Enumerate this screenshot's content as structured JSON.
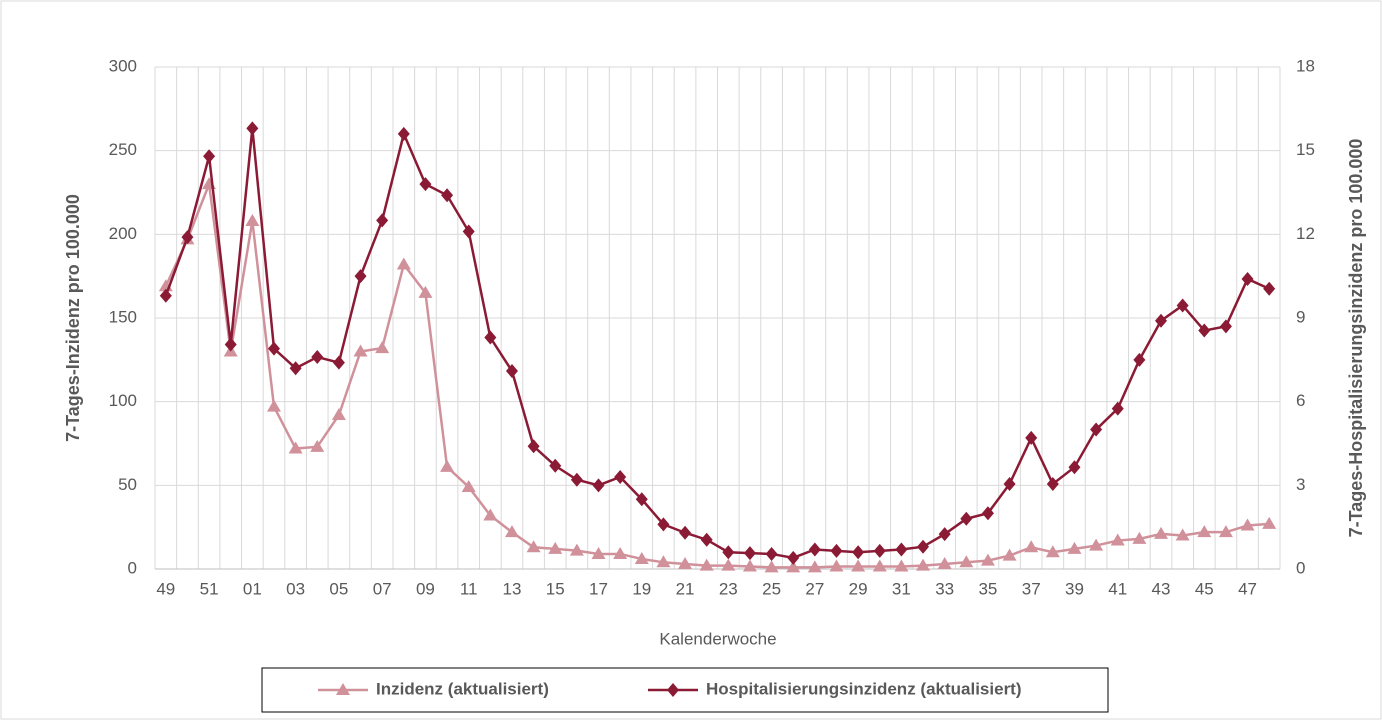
{
  "chart_data": {
    "type": "line",
    "x_label": "Kalenderwoche",
    "y_label": "7-Tages-Inzidenz pro 100.000",
    "y2_label": "7-Tages-Hospitalisierungsinzidenz pro 100.000",
    "categories": [
      "49",
      null,
      "51",
      null,
      "01",
      null,
      "03",
      null,
      "05",
      null,
      "07",
      null,
      "09",
      null,
      "11",
      null,
      "13",
      null,
      "15",
      null,
      "17",
      null,
      "19",
      null,
      "21",
      null,
      "23",
      null,
      "25",
      null,
      "27",
      null,
      "29",
      null,
      "31",
      null,
      "33",
      null,
      "35",
      null,
      "37",
      null,
      "39",
      null,
      "41",
      null,
      "43",
      null,
      "45",
      null,
      "47",
      null
    ],
    "ylim": [
      0,
      300
    ],
    "yticks": [
      0,
      50,
      100,
      150,
      200,
      250,
      300
    ],
    "y2lim": [
      0,
      18
    ],
    "y2ticks": [
      0,
      3,
      6,
      9,
      12,
      15,
      18
    ],
    "grid": true,
    "legend": "bottom",
    "series": [
      {
        "name": "Inzidenz (aktualisiert)",
        "color": "#d0919b",
        "marker": "triangle",
        "values": [
          169,
          197,
          230,
          130,
          208,
          97,
          72,
          73,
          92,
          130,
          132,
          182,
          165,
          61,
          49,
          32,
          22,
          13,
          12,
          11,
          9,
          9,
          6,
          4,
          3,
          2,
          2,
          1.5,
          1,
          1,
          1,
          1.5,
          1.5,
          1.5,
          1.5,
          2,
          3,
          4,
          5,
          8,
          13,
          10,
          12,
          14,
          17,
          18,
          21,
          20,
          22,
          22,
          26,
          27
        ]
      },
      {
        "name": "Hospitalisierungsinzidenz (aktualisiert)",
        "color": "#8b1a35",
        "marker": "diamond",
        "axis": "y2",
        "values": [
          9.8,
          11.9,
          14.8,
          8.05,
          15.8,
          7.9,
          7.2,
          7.6,
          7.4,
          10.5,
          12.5,
          15.6,
          13.8,
          13.4,
          12.1,
          8.3,
          7.1,
          4.4,
          3.7,
          3.2,
          3.0,
          3.3,
          2.5,
          1.6,
          1.3,
          1.05,
          0.6,
          0.57,
          0.54,
          0.4,
          0.7,
          0.65,
          0.6,
          0.65,
          0.7,
          0.8,
          1.25,
          1.8,
          2.0,
          3.05,
          4.7,
          3.05,
          3.65,
          5.0,
          5.75,
          7.5,
          8.9,
          9.45,
          8.55,
          8.7,
          10.4,
          10.05
        ]
      }
    ]
  }
}
